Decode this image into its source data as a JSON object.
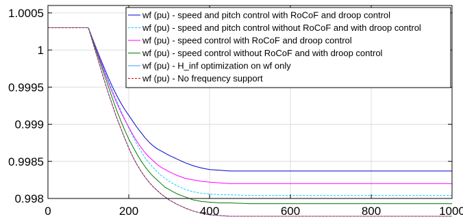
{
  "chart_data": {
    "type": "line",
    "title": "",
    "xlabel": "",
    "ylabel": "",
    "xlim": [
      0,
      1000
    ],
    "ylim": [
      0.998,
      1.0006
    ],
    "xticks": [
      0,
      200,
      400,
      600,
      800,
      1000
    ],
    "xtick_labels": [
      "0",
      "200",
      "400",
      "600",
      "800",
      "1000"
    ],
    "yticks": [
      0.998,
      0.9985,
      0.999,
      0.9995,
      1.0,
      1.0005
    ],
    "ytick_labels": [
      "0.998",
      "0.9985",
      "0.999",
      "0.9995",
      "1",
      "1.0005"
    ],
    "grid": true,
    "legend_position": "top-right",
    "series": [
      {
        "name": "wf (pu) - speed and pitch control with RoCoF and droop control",
        "color": "#0000cc",
        "dash": "solid",
        "x": [
          0,
          100,
          110,
          120,
          130,
          140,
          150,
          160,
          170,
          180,
          190,
          200,
          210,
          220,
          230,
          240,
          250,
          260,
          270,
          280,
          290,
          300,
          320,
          340,
          360,
          380,
          400,
          425,
          450,
          500,
          600,
          700,
          800,
          900,
          1000
        ],
        "y": [
          1.0003,
          1.0003,
          1.00016,
          1.00002,
          0.99988,
          0.99975,
          0.99962,
          0.9995,
          0.99939,
          0.99929,
          0.9992,
          0.99912,
          0.99904,
          0.99896,
          0.99889,
          0.99882,
          0.99876,
          0.99871,
          0.99867,
          0.99864,
          0.99861,
          0.99858,
          0.99853,
          0.99848,
          0.99844,
          0.99841,
          0.99839,
          0.99838,
          0.99837,
          0.99837,
          0.99837,
          0.99837,
          0.99837,
          0.99837,
          0.99837
        ]
      },
      {
        "name": "wf (pu) - speed and pitch control without RoCoF and with droop control",
        "color": "#00ccff",
        "dash": "dashed",
        "x": [
          0,
          100,
          110,
          120,
          130,
          140,
          150,
          160,
          170,
          180,
          190,
          200,
          210,
          220,
          230,
          240,
          250,
          260,
          270,
          280,
          290,
          300,
          320,
          340,
          360,
          380,
          400,
          425,
          450,
          500,
          600,
          700,
          800,
          900,
          1000
        ],
        "y": [
          1.0003,
          1.0003,
          1.00016,
          1.00001,
          0.99986,
          0.99972,
          0.99958,
          0.99945,
          0.99932,
          0.99919,
          0.99907,
          0.99895,
          0.99884,
          0.99873,
          0.99864,
          0.99855,
          0.99848,
          0.99842,
          0.99836,
          0.99831,
          0.99827,
          0.99823,
          0.99817,
          0.99812,
          0.99809,
          0.99807,
          0.99806,
          0.99805,
          0.99805,
          0.99804,
          0.99804,
          0.99804,
          0.99804,
          0.99804,
          0.99804
        ]
      },
      {
        "name": "wf (pu) - speed control with RoCoF and droop control",
        "color": "#ff00ff",
        "dash": "solid",
        "x": [
          0,
          100,
          110,
          120,
          130,
          140,
          150,
          160,
          170,
          180,
          190,
          200,
          210,
          220,
          230,
          240,
          250,
          260,
          270,
          280,
          290,
          300,
          320,
          340,
          360,
          380,
          400,
          425,
          450,
          500,
          600,
          700,
          800,
          900,
          1000
        ],
        "y": [
          1.0003,
          1.0003,
          1.00015,
          1.0,
          0.99985,
          0.9997,
          0.99956,
          0.99942,
          0.99929,
          0.99917,
          0.99906,
          0.99896,
          0.99886,
          0.99877,
          0.99869,
          0.99862,
          0.99856,
          0.99851,
          0.99846,
          0.99842,
          0.99839,
          0.99836,
          0.99831,
          0.99827,
          0.99825,
          0.99823,
          0.99822,
          0.99821,
          0.9982,
          0.9982,
          0.9982,
          0.9982,
          0.9982,
          0.9982,
          0.9982
        ]
      },
      {
        "name": "wf (pu) - speed control without RoCoF and with droop control",
        "color": "#007a00",
        "dash": "solid",
        "x": [
          0,
          100,
          110,
          120,
          130,
          140,
          150,
          160,
          170,
          180,
          190,
          200,
          210,
          220,
          230,
          240,
          250,
          260,
          270,
          280,
          290,
          300,
          320,
          340,
          360,
          380,
          400,
          425,
          450,
          500,
          600,
          700,
          800,
          900,
          1000
        ],
        "y": [
          1.0003,
          1.0003,
          1.00014,
          0.99998,
          0.99982,
          0.99966,
          0.9995,
          0.99934,
          0.99919,
          0.99905,
          0.99892,
          0.9988,
          0.9987,
          0.9986,
          0.99851,
          0.99843,
          0.99836,
          0.9983,
          0.99825,
          0.9982,
          0.99815,
          0.99812,
          0.99806,
          0.99802,
          0.99798,
          0.99796,
          0.99795,
          0.99794,
          0.99794,
          0.99793,
          0.99793,
          0.99793,
          0.99793,
          0.99793,
          0.99793
        ]
      },
      {
        "name": "wf (pu) - H_inf optimization on wf only",
        "color": "#3399ff",
        "dash": "solid",
        "x": [
          0,
          100,
          110,
          120,
          130,
          140,
          150,
          160,
          170,
          180,
          190,
          200,
          210,
          220,
          230,
          240,
          250,
          260,
          270,
          280,
          290,
          300,
          320,
          340,
          360,
          380,
          400,
          425,
          450,
          500,
          600,
          700,
          800,
          900,
          1000
        ],
        "y": [
          1.0003,
          1.0003,
          1.00012,
          0.99994,
          0.99976,
          0.99958,
          0.99941,
          0.99925,
          0.99909,
          0.99895,
          0.99881,
          0.99868,
          0.99856,
          0.99846,
          0.99837,
          0.99829,
          0.99822,
          0.99816,
          0.99811,
          0.99806,
          0.99802,
          0.99798,
          0.99792,
          0.99787,
          0.99783,
          0.9978,
          0.99778,
          0.99777,
          0.99776,
          0.99776,
          0.99776,
          0.99776,
          0.99776,
          0.99776,
          0.99776
        ]
      },
      {
        "name": "wf (pu) - No frequency support",
        "color": "#cc0000",
        "dash": "dashed",
        "x": [
          0,
          100,
          110,
          120,
          130,
          140,
          150,
          160,
          170,
          180,
          190,
          200,
          210,
          220,
          230,
          240,
          250,
          260,
          270,
          280,
          290,
          300,
          320,
          340,
          360,
          380,
          400,
          425,
          450,
          500,
          600,
          700,
          800,
          900,
          1000
        ],
        "y": [
          1.0003,
          1.0003,
          1.00012,
          0.99994,
          0.99976,
          0.99958,
          0.99941,
          0.99925,
          0.99909,
          0.99895,
          0.99881,
          0.99868,
          0.99856,
          0.99846,
          0.99837,
          0.99829,
          0.99822,
          0.99816,
          0.99811,
          0.99806,
          0.99802,
          0.99798,
          0.99792,
          0.99787,
          0.99783,
          0.9978,
          0.99778,
          0.99777,
          0.99776,
          0.99776,
          0.99776,
          0.99776,
          0.99776,
          0.99776,
          0.99776
        ]
      }
    ]
  }
}
